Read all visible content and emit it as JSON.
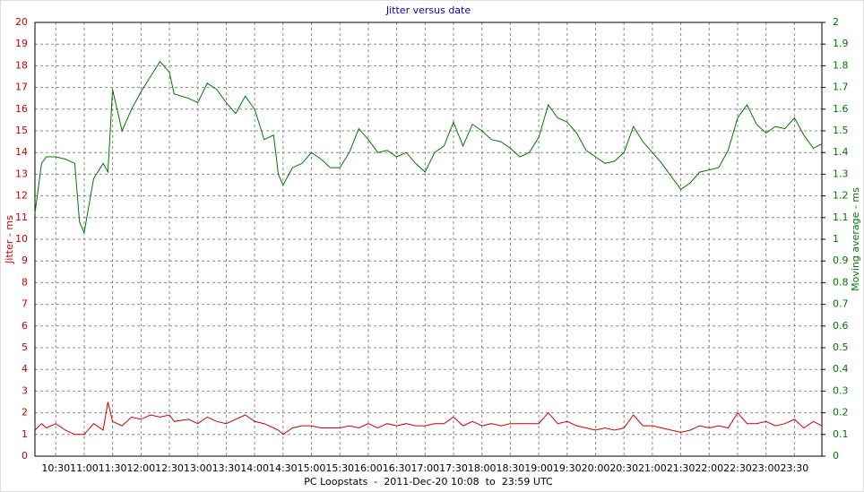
{
  "chart_data": {
    "type": "line",
    "title": "Jitter versus date",
    "y_label": "Jitter - ms",
    "y2_label": "Moving average - ms",
    "x_label": "PC Loopstats  -  2011-Dec-20 10:08  to  23:59 UTC",
    "x": [
      "10:08",
      "10:15",
      "10:20",
      "10:30",
      "10:40",
      "10:50",
      "10:55",
      "11:00",
      "11:10",
      "11:20",
      "11:25",
      "11:30",
      "11:40",
      "11:50",
      "12:00",
      "12:10",
      "12:20",
      "12:30",
      "12:35",
      "12:50",
      "13:00",
      "13:10",
      "13:20",
      "13:30",
      "13:40",
      "13:50",
      "14:00",
      "14:10",
      "14:20",
      "14:25",
      "14:30",
      "14:40",
      "14:50",
      "15:00",
      "15:10",
      "15:20",
      "15:30",
      "15:40",
      "15:50",
      "16:00",
      "16:10",
      "16:20",
      "16:30",
      "16:40",
      "16:50",
      "17:00",
      "17:10",
      "17:20",
      "17:30",
      "17:40",
      "17:50",
      "18:00",
      "18:10",
      "18:20",
      "18:30",
      "18:40",
      "18:50",
      "19:00",
      "19:10",
      "19:20",
      "19:30",
      "19:40",
      "19:50",
      "20:00",
      "20:10",
      "20:20",
      "20:30",
      "20:40",
      "20:50",
      "21:00",
      "21:10",
      "21:20",
      "21:30",
      "21:40",
      "21:50",
      "22:00",
      "22:10",
      "22:20",
      "22:30",
      "22:40",
      "22:50",
      "23:00",
      "23:10",
      "23:20",
      "23:30",
      "23:40",
      "23:50",
      "23:59"
    ],
    "series": [
      {
        "color": "#cc0000",
        "axis": "y",
        "values": [
          1.2,
          1.5,
          1.3,
          1.5,
          1.2,
          1.0,
          1.0,
          1.0,
          1.5,
          1.2,
          2.5,
          1.6,
          1.4,
          1.8,
          1.7,
          1.9,
          1.8,
          1.9,
          1.6,
          1.7,
          1.5,
          1.8,
          1.6,
          1.5,
          1.7,
          1.9,
          1.6,
          1.5,
          1.3,
          1.2,
          1.0,
          1.3,
          1.4,
          1.4,
          1.3,
          1.3,
          1.3,
          1.4,
          1.3,
          1.5,
          1.3,
          1.5,
          1.4,
          1.5,
          1.4,
          1.4,
          1.5,
          1.5,
          1.8,
          1.4,
          1.6,
          1.4,
          1.5,
          1.4,
          1.5,
          1.5,
          1.5,
          1.5,
          2.0,
          1.5,
          1.6,
          1.4,
          1.3,
          1.2,
          1.3,
          1.2,
          1.3,
          1.9,
          1.4,
          1.4,
          1.3,
          1.2,
          1.1,
          1.2,
          1.4,
          1.3,
          1.4,
          1.3,
          2.0,
          1.5,
          1.5,
          1.6,
          1.4,
          1.5,
          1.7,
          1.3,
          1.6,
          1.4
        ]
      },
      {
        "color": "#007700",
        "axis": "y2",
        "values": [
          1.12,
          1.35,
          1.38,
          1.38,
          1.37,
          1.35,
          1.08,
          1.03,
          1.28,
          1.35,
          1.31,
          1.69,
          1.5,
          1.6,
          1.68,
          1.75,
          1.82,
          1.77,
          1.67,
          1.65,
          1.63,
          1.72,
          1.69,
          1.63,
          1.58,
          1.66,
          1.6,
          1.46,
          1.48,
          1.3,
          1.25,
          1.33,
          1.35,
          1.4,
          1.37,
          1.33,
          1.33,
          1.4,
          1.51,
          1.46,
          1.4,
          1.41,
          1.38,
          1.4,
          1.35,
          1.31,
          1.4,
          1.43,
          1.54,
          1.43,
          1.53,
          1.5,
          1.46,
          1.45,
          1.42,
          1.38,
          1.4,
          1.47,
          1.62,
          1.56,
          1.54,
          1.49,
          1.41,
          1.38,
          1.35,
          1.36,
          1.4,
          1.52,
          1.45,
          1.4,
          1.35,
          1.29,
          1.23,
          1.26,
          1.31,
          1.32,
          1.33,
          1.41,
          1.56,
          1.62,
          1.53,
          1.49,
          1.52,
          1.51,
          1.56,
          1.48,
          1.42,
          1.44
        ]
      }
    ],
    "xlim": [
      "10:08",
      "23:59"
    ],
    "xticks": [
      "10:30",
      "11:00",
      "11:30",
      "12:00",
      "12:30",
      "13:00",
      "13:30",
      "14:00",
      "14:30",
      "15:00",
      "15:30",
      "16:00",
      "16:30",
      "17:00",
      "17:30",
      "18:00",
      "18:30",
      "19:00",
      "19:30",
      "20:00",
      "20:30",
      "21:00",
      "21:30",
      "22:00",
      "22:30",
      "23:00",
      "23:30"
    ],
    "ylim": [
      0,
      20
    ],
    "yticks": [
      0,
      1,
      2,
      3,
      4,
      5,
      6,
      7,
      8,
      9,
      10,
      11,
      12,
      13,
      14,
      15,
      16,
      17,
      18,
      19,
      20
    ],
    "y2lim": [
      0,
      2
    ],
    "y2ticks": [
      0,
      0.1,
      0.2,
      0.3,
      0.4,
      0.5,
      0.6,
      0.7,
      0.8,
      0.9,
      1,
      1.1,
      1.2,
      1.3,
      1.4,
      1.5,
      1.6,
      1.7,
      1.8,
      1.9,
      2
    ],
    "grid": true,
    "title_color": "#0000cc"
  }
}
